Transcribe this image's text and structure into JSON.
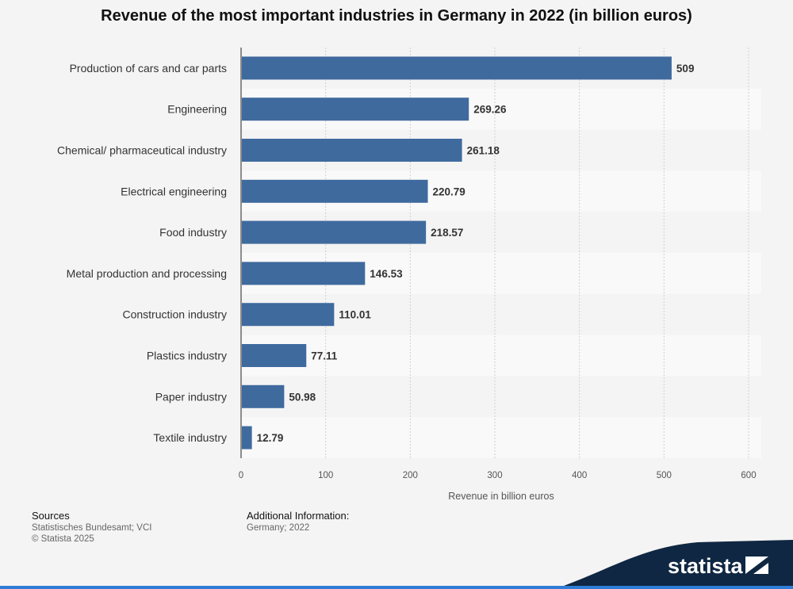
{
  "chart_data": {
    "type": "bar",
    "orientation": "horizontal",
    "title": "Revenue of the most important industries in Germany in 2022 (in billion euros)",
    "categories": [
      "Production of cars and car parts",
      "Engineering",
      "Chemical/ pharmaceutical industry",
      "Electrical engineering",
      "Food industry",
      "Metal production and processing",
      "Construction industry",
      "Plastics industry",
      "Paper industry",
      "Textile industry"
    ],
    "values": [
      509,
      269.26,
      261.18,
      220.79,
      218.57,
      146.53,
      110.01,
      77.11,
      50.98,
      12.79
    ],
    "value_labels": [
      "509",
      "269.26",
      "261.18",
      "220.79",
      "218.57",
      "146.53",
      "110.01",
      "77.11",
      "50.98",
      "12.79"
    ],
    "xlabel": "Revenue in billion euros",
    "ylabel": "",
    "xlim": [
      0,
      600
    ],
    "xticks": [
      0,
      100,
      200,
      300,
      400,
      500,
      600
    ],
    "grid": true,
    "bar_color": "#3f6a9e"
  },
  "footer": {
    "sources_title": "Sources",
    "sources_line1": "Statistisches Bundesamt; VCI",
    "sources_line2": "© Statista 2025",
    "info_title": "Additional Information:",
    "info_line1": "Germany; 2022"
  },
  "brand": {
    "logo_text": "statista",
    "banner_color": "#0f2742",
    "accent_color": "#2f7cd6"
  }
}
